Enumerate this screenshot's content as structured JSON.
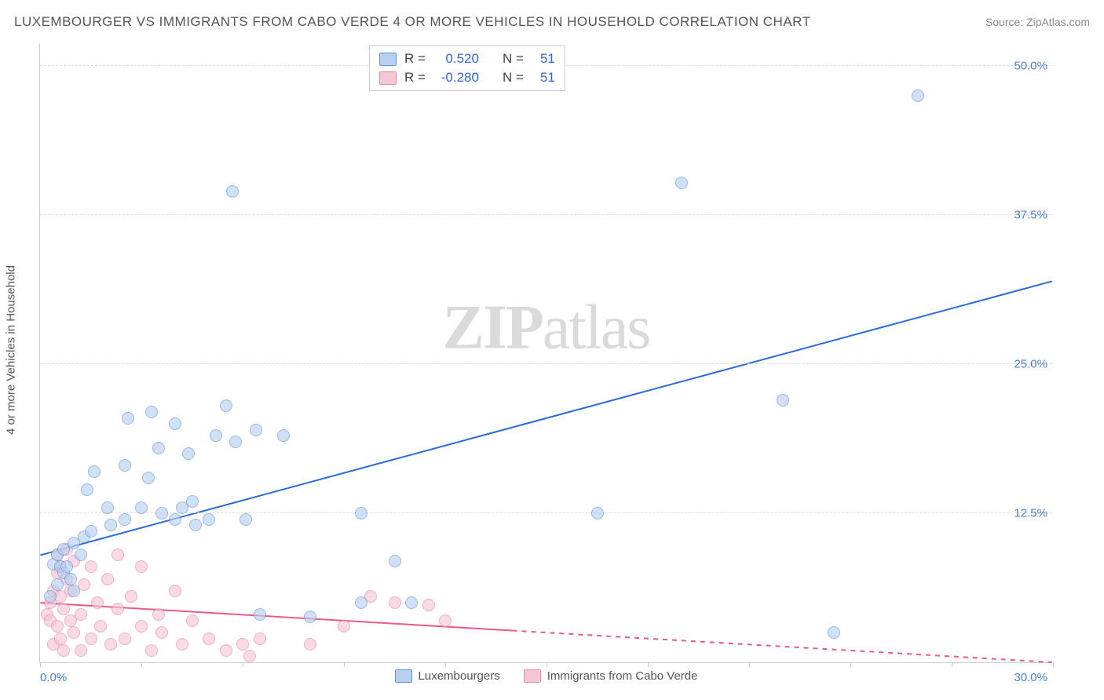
{
  "title": "LUXEMBOURGER VS IMMIGRANTS FROM CABO VERDE 4 OR MORE VEHICLES IN HOUSEHOLD CORRELATION CHART",
  "source_label": "Source: ZipAtlas.com",
  "watermark": {
    "part1": "ZIP",
    "part2": "atlas"
  },
  "y_axis_label": "4 or more Vehicles in Household",
  "chart": {
    "type": "scatter",
    "background_color": "#ffffff",
    "grid_color": "#dddddd",
    "axis_color": "#cccccc",
    "tick_label_color": "#4a7fd6",
    "xlim": [
      0,
      30
    ],
    "ylim": [
      0,
      52
    ],
    "xticks_count": 11,
    "xlabel_min": "0.0%",
    "xlabel_max": "30.0%",
    "ytick_values": [
      12.5,
      25.0,
      37.5,
      50.0
    ],
    "ytick_labels": [
      "12.5%",
      "25.0%",
      "37.5%",
      "50.0%"
    ],
    "marker_radius": 8,
    "marker_opacity": 0.65
  },
  "series": {
    "blue": {
      "name": "Luxembourgers",
      "fill_color": "#b8d0f0",
      "stroke_color": "#6495d6",
      "line_color": "#2a6bd4",
      "r_value": "0.520",
      "n_value": "51",
      "trend": {
        "x1": 0,
        "y1": 9.0,
        "x2": 30,
        "y2": 32.0,
        "dash_after_x": 30
      },
      "points": [
        [
          0.3,
          5.5
        ],
        [
          0.4,
          8.2
        ],
        [
          0.5,
          9.0
        ],
        [
          0.5,
          6.5
        ],
        [
          0.6,
          8.0
        ],
        [
          0.7,
          9.5
        ],
        [
          0.7,
          7.5
        ],
        [
          0.8,
          8.0
        ],
        [
          0.9,
          7.0
        ],
        [
          1.0,
          10.0
        ],
        [
          1.0,
          6.0
        ],
        [
          1.2,
          9.0
        ],
        [
          1.3,
          10.5
        ],
        [
          1.4,
          14.5
        ],
        [
          1.5,
          11.0
        ],
        [
          1.6,
          16.0
        ],
        [
          2.0,
          13.0
        ],
        [
          2.1,
          11.5
        ],
        [
          2.5,
          12.0
        ],
        [
          2.5,
          16.5
        ],
        [
          2.6,
          20.5
        ],
        [
          3.0,
          13.0
        ],
        [
          3.2,
          15.5
        ],
        [
          3.3,
          21.0
        ],
        [
          3.5,
          18.0
        ],
        [
          3.6,
          12.5
        ],
        [
          4.0,
          12.0
        ],
        [
          4.0,
          20.0
        ],
        [
          4.2,
          13.0
        ],
        [
          4.4,
          17.5
        ],
        [
          4.5,
          13.5
        ],
        [
          4.6,
          11.5
        ],
        [
          5.0,
          12.0
        ],
        [
          5.2,
          19.0
        ],
        [
          5.5,
          21.5
        ],
        [
          5.7,
          39.5
        ],
        [
          5.8,
          18.5
        ],
        [
          6.1,
          12.0
        ],
        [
          6.4,
          19.5
        ],
        [
          6.5,
          4.0
        ],
        [
          7.2,
          19.0
        ],
        [
          8.0,
          3.8
        ],
        [
          9.5,
          12.5
        ],
        [
          9.5,
          5.0
        ],
        [
          10.5,
          8.5
        ],
        [
          11.0,
          5.0
        ],
        [
          16.5,
          12.5
        ],
        [
          19.0,
          40.2
        ],
        [
          22.0,
          22.0
        ],
        [
          23.5,
          2.5
        ],
        [
          26.0,
          47.5
        ]
      ]
    },
    "pink": {
      "name": "Immigrants from Cabo Verde",
      "fill_color": "#f5c6d6",
      "stroke_color": "#e68aa8",
      "line_color": "#e85a88",
      "r_value": "-0.280",
      "n_value": "51",
      "trend": {
        "x1": 0,
        "y1": 5.0,
        "x2": 30,
        "y2": 0.0,
        "dash_after_x": 14
      },
      "points": [
        [
          0.2,
          4.0
        ],
        [
          0.3,
          3.5
        ],
        [
          0.3,
          5.0
        ],
        [
          0.4,
          1.5
        ],
        [
          0.4,
          6.0
        ],
        [
          0.5,
          7.5
        ],
        [
          0.5,
          3.0
        ],
        [
          0.5,
          9.0
        ],
        [
          0.6,
          5.5
        ],
        [
          0.6,
          2.0
        ],
        [
          0.6,
          8.0
        ],
        [
          0.7,
          4.5
        ],
        [
          0.7,
          1.0
        ],
        [
          0.8,
          7.0
        ],
        [
          0.8,
          9.5
        ],
        [
          0.9,
          3.5
        ],
        [
          0.9,
          6.0
        ],
        [
          1.0,
          2.5
        ],
        [
          1.0,
          8.5
        ],
        [
          1.2,
          4.0
        ],
        [
          1.2,
          1.0
        ],
        [
          1.3,
          6.5
        ],
        [
          1.5,
          2.0
        ],
        [
          1.5,
          8.0
        ],
        [
          1.7,
          5.0
        ],
        [
          1.8,
          3.0
        ],
        [
          2.0,
          7.0
        ],
        [
          2.1,
          1.5
        ],
        [
          2.3,
          4.5
        ],
        [
          2.3,
          9.0
        ],
        [
          2.5,
          2.0
        ],
        [
          2.7,
          5.5
        ],
        [
          3.0,
          3.0
        ],
        [
          3.0,
          8.0
        ],
        [
          3.3,
          1.0
        ],
        [
          3.5,
          4.0
        ],
        [
          3.6,
          2.5
        ],
        [
          4.0,
          6.0
        ],
        [
          4.2,
          1.5
        ],
        [
          4.5,
          3.5
        ],
        [
          5.0,
          2.0
        ],
        [
          5.5,
          1.0
        ],
        [
          6.0,
          1.5
        ],
        [
          6.2,
          0.5
        ],
        [
          6.5,
          2.0
        ],
        [
          8.0,
          1.5
        ],
        [
          9.0,
          3.0
        ],
        [
          9.8,
          5.5
        ],
        [
          10.5,
          5.0
        ],
        [
          11.5,
          4.8
        ],
        [
          12.0,
          3.5
        ]
      ]
    }
  },
  "stats_legend_labels": {
    "r": "R =",
    "n": "N ="
  },
  "bottom_legend": {
    "blue_label": "Luxembourgers",
    "pink_label": "Immigrants from Cabo Verde"
  }
}
